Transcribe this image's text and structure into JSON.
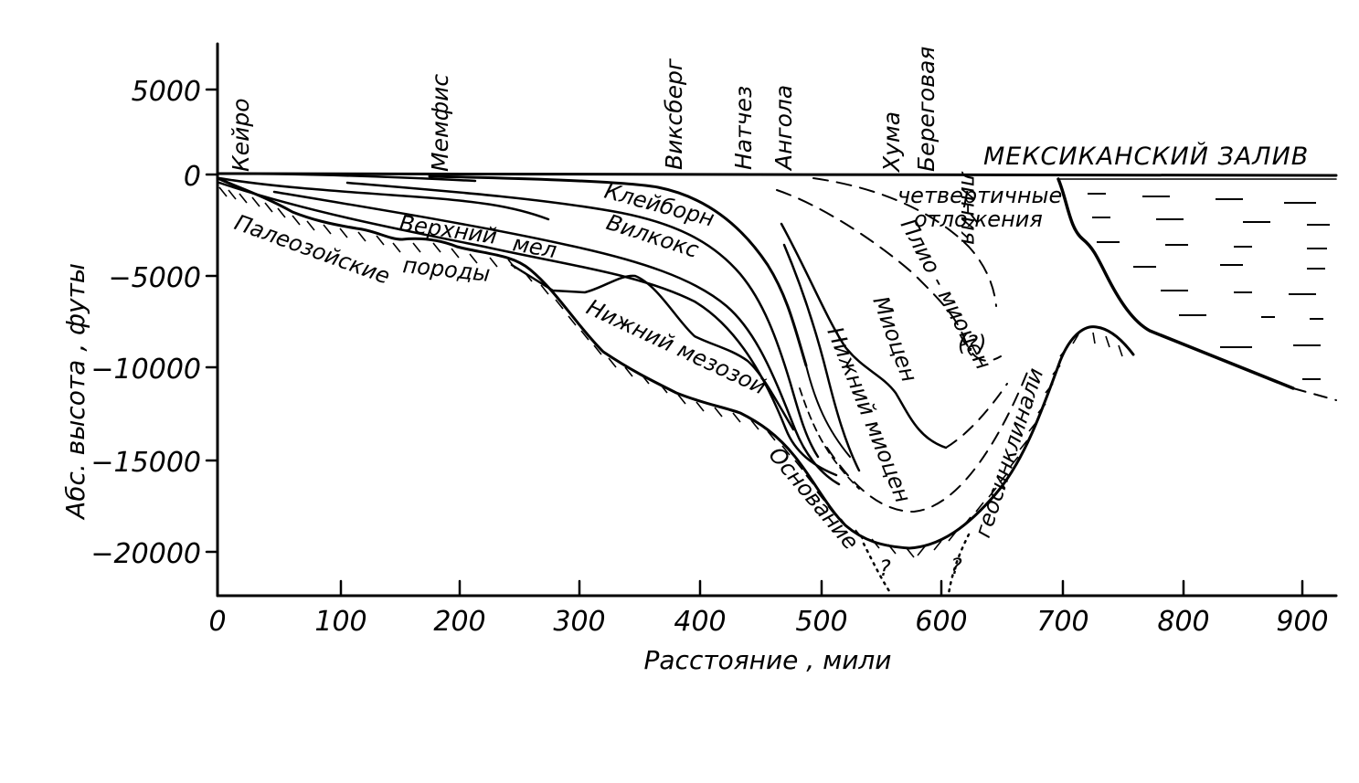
{
  "y_axis": {
    "title": "Абс. высота , футы",
    "ticks": [
      "5000",
      "0",
      "−5000",
      "−10000",
      "−15000",
      "−20000"
    ]
  },
  "x_axis": {
    "title": "Расстояние , мили",
    "ticks": [
      "0",
      "100",
      "200",
      "300",
      "400",
      "500",
      "600",
      "700",
      "800",
      "900"
    ]
  },
  "places": {
    "cairo": "Кейро",
    "memphis": "Мемфис",
    "vicksburg": "Виксберг",
    "natchez": "Натчез",
    "angola": "Ангола",
    "houma": "Хума",
    "coastline_1": "Береговая",
    "coastline_2": "линия"
  },
  "sea_label": "МЕКСИКАНСКИЙ ЗАЛИВ",
  "units": {
    "quaternary_1": "четвертичные",
    "quaternary_2": "отложения",
    "claiborne": "Клейборн",
    "wilcox": "Вилкокс",
    "upper_cretaceous_1": "Верхний",
    "upper_cretaceous_2": "мел",
    "paleozoic_1": "Палеозойские",
    "paleozoic_2": "породы",
    "lower_mesozoic": "Нижний мезозой",
    "pliomiocene": "Плио - миоцен",
    "question": "(?)",
    "miocene": "Миоцен",
    "lower_miocene": "Нижний миоцен",
    "basement": "Основание",
    "geosyncline": "геосинклинали"
  },
  "small_marks": {
    "q1": "?",
    "q2": "?"
  }
}
